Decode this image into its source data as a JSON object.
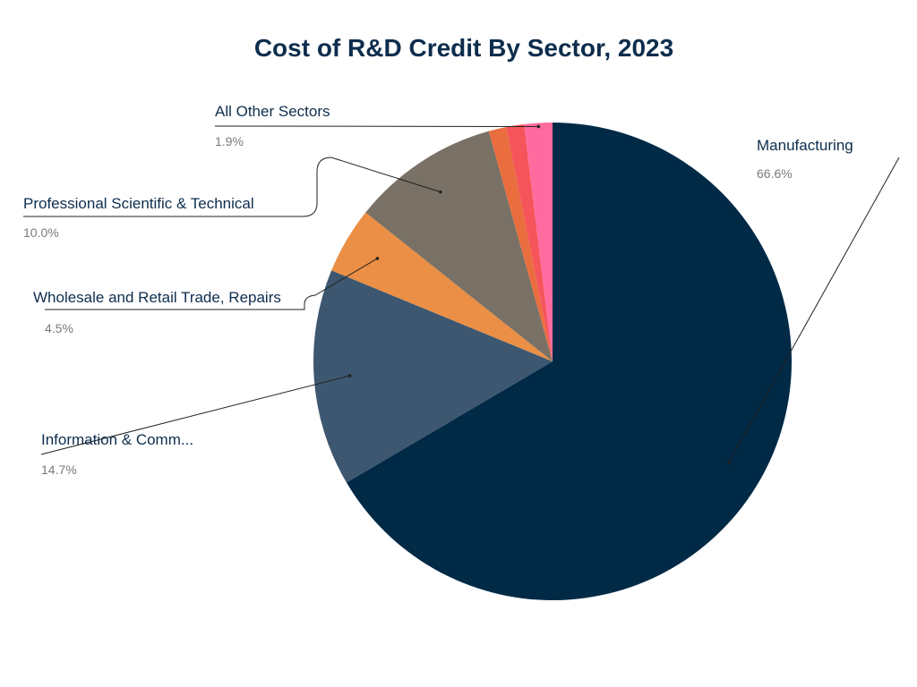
{
  "chart_data": {
    "type": "pie",
    "title": "Cost of R&D Credit By Sector, 2023",
    "start_angle": "12 o'clock",
    "direction": "clockwise",
    "slices": [
      {
        "label": "Manufacturing",
        "value": 66.6,
        "pct_label": "66.6%",
        "color": "#012a47"
      },
      {
        "label": "Information & Comm...",
        "value": 14.7,
        "pct_label": "14.7%",
        "color": "#3e5770"
      },
      {
        "label": "Wholesale and Retail Trade, Repairs",
        "value": 4.5,
        "pct_label": "4.5%",
        "color": "#ea8f45"
      },
      {
        "label": "Professional Scientific & Technical",
        "value": 10.0,
        "pct_label": "10.0%",
        "color": "#797165"
      },
      {
        "label": "",
        "value": 1.2,
        "color": "#ea6d3f"
      },
      {
        "label": "",
        "value": 1.2,
        "color": "#f5555a"
      },
      {
        "label": "All Other Sectors",
        "value": 1.9,
        "pct_label": "1.9%",
        "color": "#ff6b9f"
      }
    ]
  }
}
